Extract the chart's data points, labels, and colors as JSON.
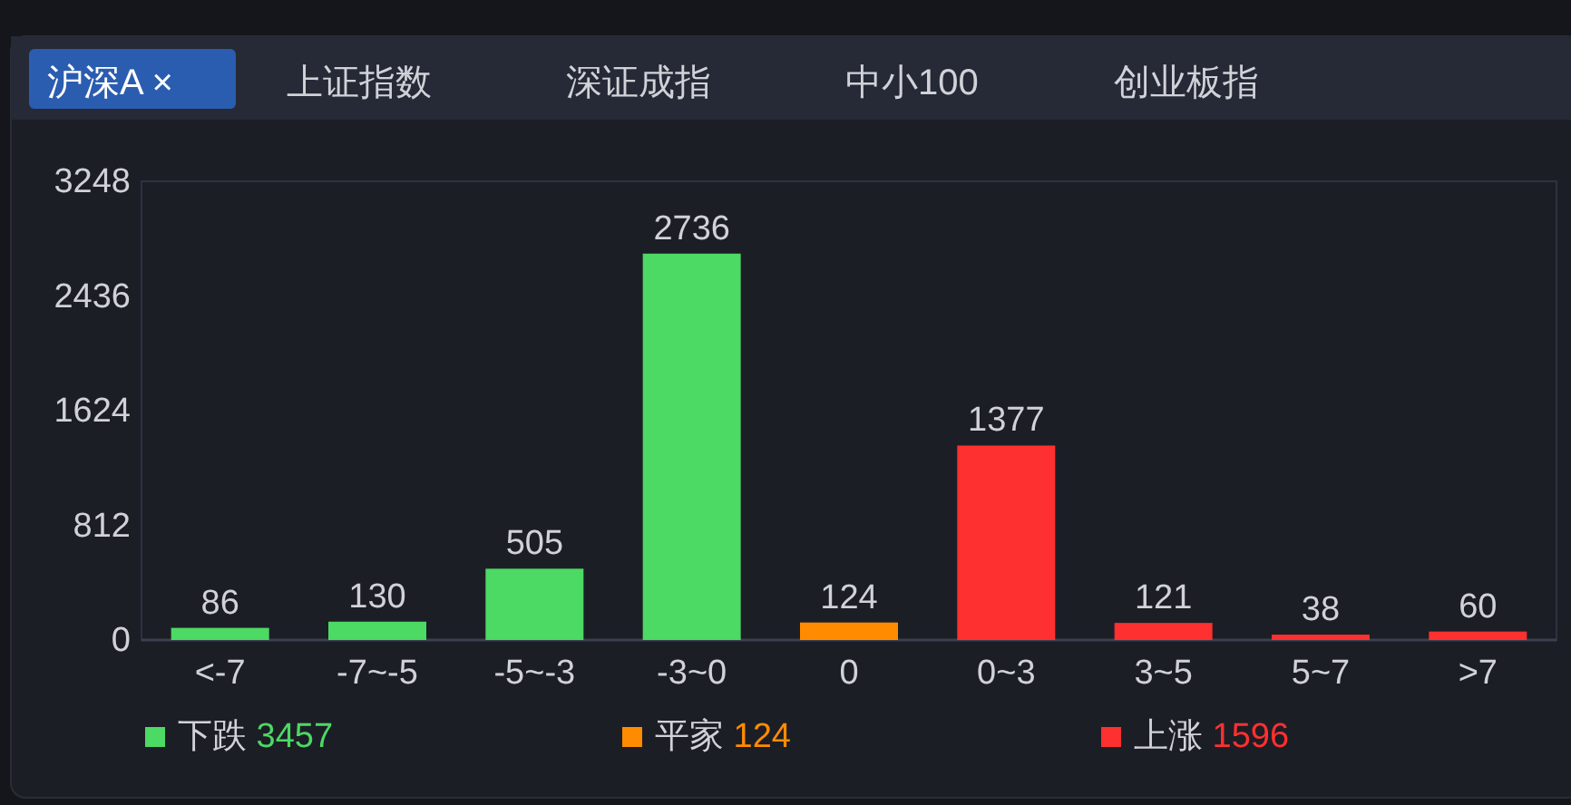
{
  "chart_data": {
    "type": "bar",
    "categories": [
      "<-7",
      "-7~-5",
      "-5~-3",
      "-3~0",
      "0",
      "0~3",
      "3~5",
      "5~7",
      ">7"
    ],
    "series": [
      {
        "name": "下跌 3457",
        "color": "#4cd964",
        "values": [
          86,
          130,
          505,
          2736,
          null,
          null,
          null,
          null,
          null
        ]
      },
      {
        "name": "平家 124",
        "color": "#ff8c00",
        "values": [
          null,
          null,
          null,
          null,
          124,
          null,
          null,
          null,
          null
        ]
      },
      {
        "name": "上涨 1596",
        "color": "#ff3030",
        "values": [
          null,
          null,
          null,
          null,
          null,
          1377,
          121,
          38,
          60
        ]
      }
    ],
    "ylim": [
      0,
      3248
    ],
    "yticks": [
      0,
      812,
      1624,
      2436,
      3248
    ],
    "data_labels": true,
    "grid": false,
    "legend": "bottom",
    "annotations": [
      "沪深A ×",
      "上证指数",
      "深证成指",
      "中小100",
      "创业板指"
    ]
  }
}
